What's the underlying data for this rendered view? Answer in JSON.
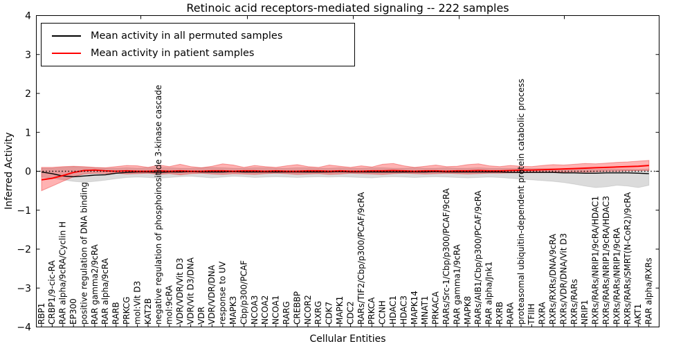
{
  "chart_data": {
    "type": "line",
    "title": "Retinoic acid receptors-mediated signaling -- 222 samples",
    "xlabel": "Cellular Entities",
    "ylabel": "Inferred Activity",
    "ylim": [
      -4,
      4
    ],
    "yticks": [
      -4,
      -3,
      -2,
      -1,
      0,
      1,
      2,
      3,
      4
    ],
    "grid": false,
    "legend_position": "upper left",
    "zero_line": {
      "style": "dotted",
      "color": "#000000",
      "y": 0
    },
    "categories": [
      "RBP1",
      "CRBP1/9-cic-RA",
      "RAR alpha/9cRA/Cyclin H",
      "EP300",
      "positive regulation of DNA binding",
      "RAR gamma2/9cRA",
      "RAR alpha/9cRA",
      "RARB",
      "PRKCG",
      "mol:Vit D3",
      "KAT2B",
      "negative regulation of phosphoinositide 3-kinase cascade",
      "mol:9cRA",
      "VDR/VDR/Vit D3",
      "VDR/Vit D3/DNA",
      "VDR",
      "VDR/VDR/DNA",
      "response to UV",
      "MAPK3",
      "Cbp/p300/PCAF",
      "NCOA3",
      "NCOA2",
      "NCOA1",
      "RARG",
      "CREBBP",
      "NCOR2",
      "RXRG",
      "CDK7",
      "MAPK1",
      "CDC2",
      "RARs/TIF2/Cbp/p300/PCAF/9cRA",
      "PRKCA",
      "CCNH",
      "HDAC1",
      "HDAC3",
      "MAPK14",
      "MNAT1",
      "PRKACA",
      "RARs/Src-1/Cbp/p300/PCAF/9cRA",
      "RAR gamma1/9cRA",
      "MAPK8",
      "RARs/AIB1/Cbp/p300/PCAF/9cRA",
      "RAR alpha/Jnk1",
      "RXRB",
      "RARA",
      "proteasomal ubiquitin-dependent protein catabolic process",
      "TFIIH",
      "RXRA",
      "RXRs/RXRs/DNA/9cRA",
      "RXRs/VDR/DNA/Vit D3",
      "RXRs/RARs",
      "NRIP1",
      "RXRs/RARs/NRIP1/9cRA/HDAC1",
      "RXRs/RARs/NRIP1/9cRA/HDAC3",
      "RXRs/RARs/NRIP1/9cRA",
      "RXRs/RARs/SMRT(N-CoR2)/9cRA",
      "AKT1",
      "RAR alpha/RXRs"
    ],
    "series": [
      {
        "name": "Mean activity in all permuted samples",
        "color": "#000000",
        "line_width": 1.4,
        "band_color": "rgba(0,0,0,0.14)",
        "band_edge": "rgba(0,0,0,0.10)",
        "values": [
          -0.02,
          -0.06,
          -0.12,
          -0.14,
          -0.12,
          -0.1,
          -0.09,
          -0.05,
          -0.03,
          -0.02,
          -0.02,
          -0.03,
          -0.02,
          -0.02,
          -0.01,
          -0.02,
          -0.02,
          -0.02,
          -0.01,
          -0.02,
          -0.02,
          -0.02,
          -0.02,
          -0.02,
          -0.02,
          -0.02,
          -0.02,
          -0.02,
          -0.01,
          -0.02,
          -0.02,
          -0.02,
          -0.02,
          -0.02,
          -0.02,
          -0.02,
          -0.02,
          -0.01,
          -0.02,
          -0.02,
          -0.02,
          -0.02,
          -0.02,
          -0.02,
          -0.03,
          -0.03,
          -0.03,
          -0.03,
          -0.03,
          -0.04,
          -0.04,
          -0.05,
          -0.05,
          -0.04,
          -0.04,
          -0.04,
          -0.05,
          -0.06
        ],
        "band_lo": [
          -0.15,
          -0.18,
          -0.22,
          -0.26,
          -0.28,
          -0.26,
          -0.23,
          -0.19,
          -0.16,
          -0.15,
          -0.16,
          -0.18,
          -0.16,
          -0.14,
          -0.13,
          -0.15,
          -0.17,
          -0.15,
          -0.13,
          -0.14,
          -0.16,
          -0.15,
          -0.14,
          -0.15,
          -0.16,
          -0.15,
          -0.14,
          -0.15,
          -0.14,
          -0.15,
          -0.16,
          -0.17,
          -0.15,
          -0.14,
          -0.15,
          -0.16,
          -0.15,
          -0.14,
          -0.15,
          -0.16,
          -0.17,
          -0.16,
          -0.15,
          -0.16,
          -0.18,
          -0.2,
          -0.22,
          -0.24,
          -0.26,
          -0.29,
          -0.33,
          -0.38,
          -0.42,
          -0.4,
          -0.36,
          -0.38,
          -0.42,
          -0.36
        ],
        "band_hi": [
          0.08,
          0.08,
          0.1,
          0.12,
          0.1,
          0.09,
          0.08,
          0.08,
          0.09,
          0.08,
          0.09,
          0.1,
          0.09,
          0.08,
          0.08,
          0.09,
          0.1,
          0.09,
          0.08,
          0.08,
          0.09,
          0.09,
          0.08,
          0.08,
          0.09,
          0.09,
          0.08,
          0.08,
          0.09,
          0.08,
          0.08,
          0.09,
          0.09,
          0.08,
          0.08,
          0.09,
          0.08,
          0.08,
          0.09,
          0.08,
          0.08,
          0.09,
          0.08,
          0.08,
          0.08,
          0.08,
          0.07,
          0.07,
          0.07,
          0.06,
          0.06,
          0.06,
          0.05,
          0.06,
          0.06,
          0.06,
          0.05,
          0.06
        ]
      },
      {
        "name": "Mean activity in patient samples",
        "color": "#ff0000",
        "line_width": 2,
        "band_color": "rgba(255,0,0,0.30)",
        "band_edge": "rgba(230,0,0,0.35)",
        "values": [
          -0.22,
          -0.18,
          -0.11,
          -0.03,
          0.02,
          0.03,
          0.01,
          0.0,
          0.01,
          0.0,
          0.0,
          0.01,
          0.0,
          0.01,
          0.0,
          0.0,
          0.01,
          0.01,
          0.0,
          0.01,
          0.01,
          0.0,
          0.01,
          0.0,
          0.0,
          0.01,
          0.01,
          0.0,
          0.01,
          0.0,
          0.0,
          0.01,
          0.01,
          0.02,
          0.01,
          0.0,
          0.01,
          0.01,
          0.0,
          0.01,
          0.01,
          0.02,
          0.01,
          0.01,
          0.02,
          0.03,
          0.03,
          0.04,
          0.05,
          0.06,
          0.07,
          0.08,
          0.09,
          0.1,
          0.11,
          0.12,
          0.13,
          0.15
        ],
        "band_lo": [
          -0.5,
          -0.38,
          -0.26,
          -0.14,
          -0.07,
          -0.05,
          -0.06,
          -0.05,
          -0.07,
          -0.06,
          -0.05,
          -0.08,
          -0.06,
          -0.09,
          -0.06,
          -0.05,
          -0.07,
          -0.08,
          -0.06,
          -0.07,
          -0.08,
          -0.06,
          -0.05,
          -0.06,
          -0.08,
          -0.07,
          -0.06,
          -0.08,
          -0.07,
          -0.05,
          -0.06,
          -0.07,
          -0.08,
          -0.06,
          -0.05,
          -0.06,
          -0.07,
          -0.06,
          -0.05,
          -0.06,
          -0.07,
          -0.06,
          -0.05,
          -0.05,
          -0.04,
          -0.04,
          -0.03,
          -0.03,
          -0.02,
          -0.02,
          -0.01,
          -0.02,
          -0.01,
          0.0,
          0.0,
          0.01,
          0.02,
          0.02
        ],
        "band_hi": [
          0.1,
          0.1,
          0.12,
          0.13,
          0.12,
          0.1,
          0.09,
          0.12,
          0.15,
          0.14,
          0.1,
          0.16,
          0.12,
          0.18,
          0.12,
          0.09,
          0.13,
          0.19,
          0.16,
          0.1,
          0.15,
          0.12,
          0.1,
          0.14,
          0.17,
          0.12,
          0.1,
          0.16,
          0.13,
          0.1,
          0.14,
          0.11,
          0.18,
          0.2,
          0.14,
          0.1,
          0.13,
          0.16,
          0.12,
          0.13,
          0.17,
          0.19,
          0.14,
          0.12,
          0.15,
          0.13,
          0.12,
          0.15,
          0.17,
          0.16,
          0.18,
          0.2,
          0.19,
          0.21,
          0.23,
          0.24,
          0.26,
          0.28
        ]
      }
    ]
  }
}
